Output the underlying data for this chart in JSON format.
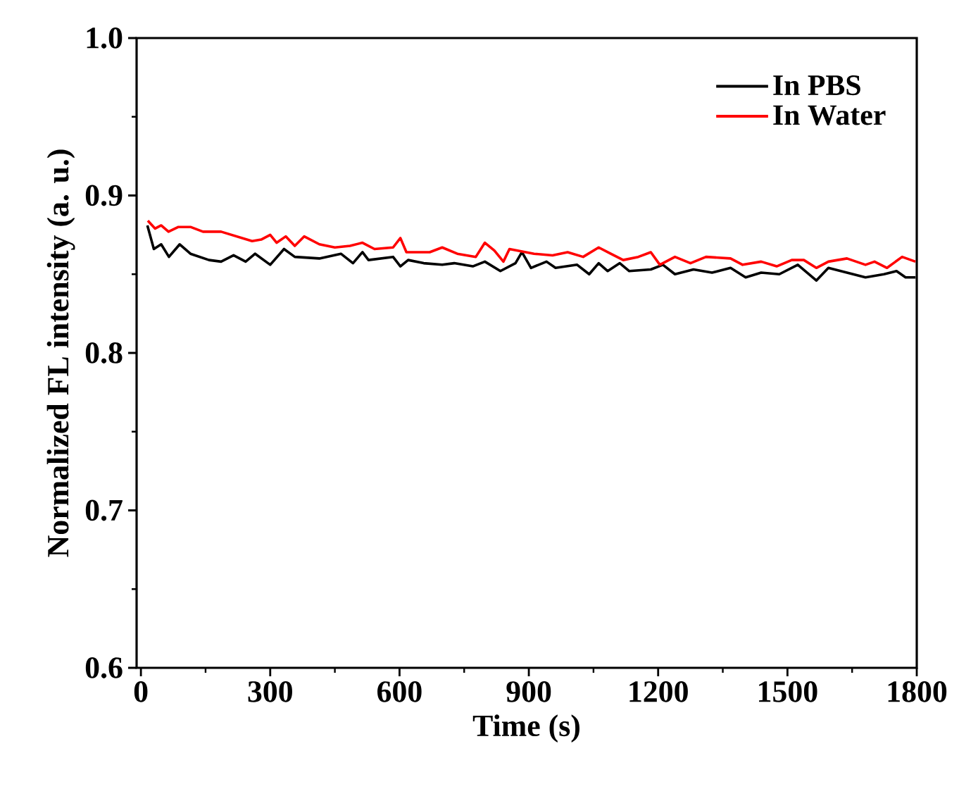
{
  "chart_data": {
    "type": "line",
    "xlabel": "Time (s)",
    "ylabel": "Normalized FL intensity (a. u.)",
    "xlim": [
      -10,
      1800
    ],
    "ylim": [
      0.6,
      1.0
    ],
    "xticks": [
      0,
      300,
      600,
      900,
      1200,
      1500,
      1800
    ],
    "yticks": [
      0.6,
      0.7,
      0.8,
      0.9,
      {
        "value": 1.0,
        "label": "1.0"
      }
    ],
    "grid": false,
    "legend": "top right",
    "marker": "none",
    "line_style": "solid",
    "series": [
      {
        "name": "In PBS",
        "color": "#000000",
        "x": [
          15,
          30,
          47,
          65,
          90,
          115,
          158,
          186,
          215,
          243,
          265,
          300,
          332,
          357,
          414,
          464,
          492,
          514,
          528,
          585,
          602,
          620,
          656,
          699,
          727,
          770,
          798,
          834,
          869,
          884,
          905,
          941,
          962,
          1012,
          1040,
          1062,
          1083,
          1111,
          1133,
          1183,
          1211,
          1239,
          1282,
          1325,
          1368,
          1403,
          1439,
          1481,
          1524,
          1567,
          1595,
          1638,
          1681,
          1724,
          1753,
          1774,
          1797
        ],
        "values": [
          0.881,
          0.866,
          0.869,
          0.861,
          0.869,
          0.863,
          0.859,
          0.858,
          0.862,
          0.858,
          0.863,
          0.856,
          0.866,
          0.861,
          0.86,
          0.863,
          0.857,
          0.864,
          0.859,
          0.861,
          0.855,
          0.859,
          0.857,
          0.856,
          0.857,
          0.855,
          0.858,
          0.852,
          0.857,
          0.864,
          0.854,
          0.858,
          0.854,
          0.856,
          0.85,
          0.857,
          0.852,
          0.857,
          0.852,
          0.853,
          0.856,
          0.85,
          0.853,
          0.851,
          0.854,
          0.848,
          0.851,
          0.85,
          0.856,
          0.846,
          0.854,
          0.851,
          0.848,
          0.85,
          0.852,
          0.848,
          0.848
        ]
      },
      {
        "name": "In Water",
        "color": "#ff0000",
        "x": [
          16,
          33,
          47,
          64,
          87,
          115,
          144,
          186,
          222,
          258,
          279,
          300,
          315,
          336,
          357,
          379,
          414,
          450,
          485,
          514,
          542,
          585,
          602,
          616,
          670,
          699,
          734,
          777,
          798,
          820,
          841,
          855,
          912,
          955,
          990,
          1026,
          1062,
          1090,
          1119,
          1154,
          1183,
          1204,
          1239,
          1275,
          1311,
          1368,
          1396,
          1439,
          1475,
          1510,
          1538,
          1567,
          1595,
          1638,
          1681,
          1702,
          1731,
          1766,
          1797
        ],
        "values": [
          0.884,
          0.879,
          0.881,
          0.877,
          0.88,
          0.88,
          0.877,
          0.877,
          0.874,
          0.871,
          0.872,
          0.875,
          0.87,
          0.874,
          0.868,
          0.874,
          0.869,
          0.867,
          0.868,
          0.87,
          0.866,
          0.867,
          0.873,
          0.864,
          0.864,
          0.867,
          0.863,
          0.861,
          0.87,
          0.865,
          0.858,
          0.866,
          0.863,
          0.862,
          0.864,
          0.861,
          0.867,
          0.863,
          0.859,
          0.861,
          0.864,
          0.856,
          0.861,
          0.857,
          0.861,
          0.86,
          0.856,
          0.858,
          0.855,
          0.859,
          0.859,
          0.854,
          0.858,
          0.86,
          0.856,
          0.858,
          0.854,
          0.861,
          0.858
        ]
      }
    ]
  }
}
